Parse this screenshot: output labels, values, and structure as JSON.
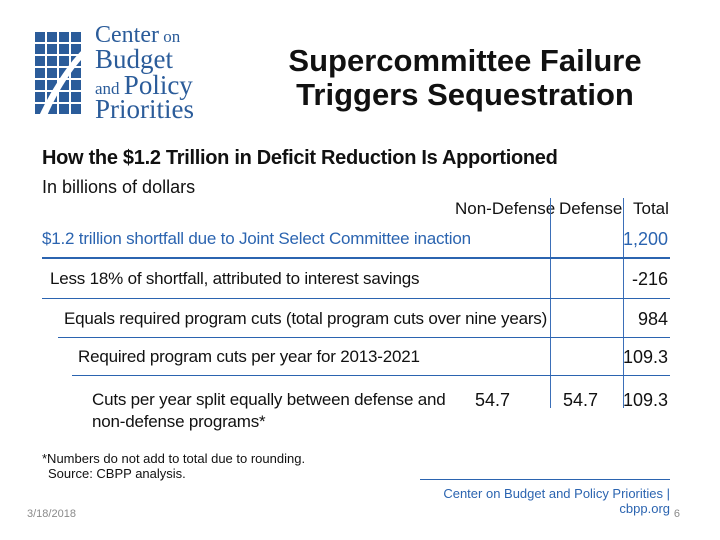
{
  "logo": {
    "line1a": "Center",
    "line1b": "on",
    "line2": "Budget",
    "line3a": "and",
    "line3b": "Policy",
    "line4": "Priorities"
  },
  "slide": {
    "title_line1": "Supercommittee Failure",
    "title_line2": "Triggers Sequestration",
    "date": "3/18/2018",
    "page_number": "6"
  },
  "table": {
    "title": "How the $1.2 Trillion in Deficit Reduction Is Apportioned",
    "subtitle": "In billions of dollars",
    "columns": [
      "Non-Defense",
      "Defense",
      "Total"
    ],
    "rows": [
      {
        "label": "$1.2 trillion shortfall due to Joint Select Committee inaction",
        "non_defense": "",
        "defense": "",
        "total": "1,200"
      },
      {
        "label": "Less 18% of shortfall, attributed to interest savings",
        "non_defense": "",
        "defense": "",
        "total": "-216"
      },
      {
        "label": "Equals required program cuts (total program cuts over nine years)",
        "non_defense": "",
        "defense": "",
        "total": "984"
      },
      {
        "label": "Required program cuts per year for 2013-2021",
        "non_defense": "",
        "defense": "",
        "total": "109.3"
      },
      {
        "label_line1": "Cuts per year split equally between defense and",
        "label_line2": "non-defense programs*",
        "non_defense": "54.7",
        "defense": "54.7",
        "total": "109.3"
      }
    ],
    "footnote": "*Numbers do not add to total due to rounding.",
    "source": "Source: CBPP analysis.",
    "brand": "Center on Budget and Policy Priorities | cbpp.org"
  },
  "colors": {
    "accent": "#2b64b0",
    "text": "#111111"
  }
}
